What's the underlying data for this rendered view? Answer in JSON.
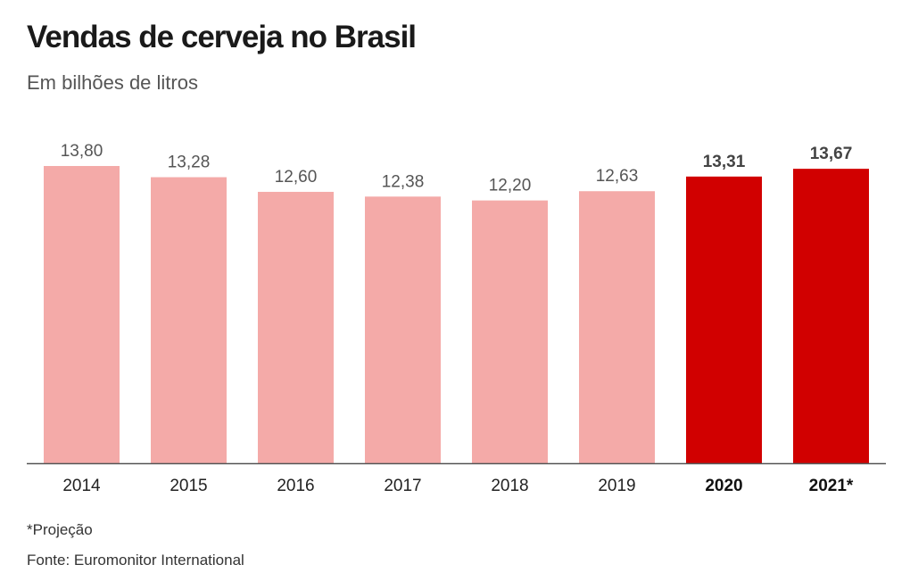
{
  "header": {
    "title": "Vendas de cerveja no Brasil",
    "subtitle": "Em bilhões de litros"
  },
  "footer": {
    "note": "*Projeção",
    "source": "Fonte: Euromonitor International"
  },
  "colors": {
    "bar_default": "#f4aaa8",
    "bar_highlight": "#d10000",
    "axis": "#555555"
  },
  "chart_data": {
    "type": "bar",
    "title": "Vendas de cerveja no Brasil",
    "subtitle": "Em bilhões de litros",
    "xlabel": "",
    "ylabel": "",
    "categories": [
      "2014",
      "2015",
      "2016",
      "2017",
      "2018",
      "2019",
      "2020",
      "2021*"
    ],
    "values": [
      13.8,
      13.28,
      12.6,
      12.38,
      12.2,
      12.63,
      13.31,
      13.67
    ],
    "value_labels": [
      "13,80",
      "13,28",
      "12,60",
      "12,38",
      "12,20",
      "12,63",
      "13,31",
      "13,67"
    ],
    "highlighted": [
      "2020",
      "2021*"
    ],
    "ylim": [
      0,
      13.8
    ],
    "grid": false,
    "legend": "none"
  }
}
